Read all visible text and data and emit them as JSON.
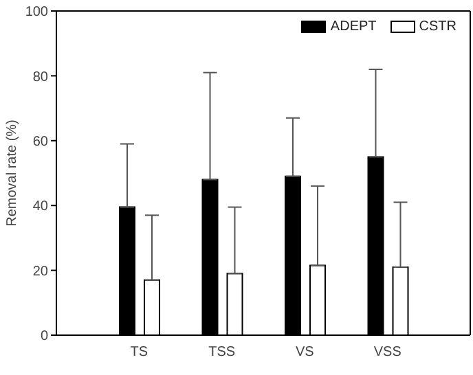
{
  "chart_data": {
    "type": "bar",
    "ylabel": "Removal rate (%)",
    "categories": [
      "TS",
      "TSS",
      "VS",
      "VSS"
    ],
    "series": [
      {
        "name": "ADEPT",
        "color": "#000000",
        "values": [
          39.5,
          48,
          49,
          55
        ],
        "errors": [
          [
            39.5,
            59
          ],
          [
            48,
            81
          ],
          [
            49,
            67
          ],
          [
            55,
            82
          ]
        ]
      },
      {
        "name": "CSTR",
        "color": "#ffffff",
        "values": [
          17,
          19,
          21.5,
          21
        ],
        "errors": [
          [
            17,
            37
          ],
          [
            19,
            39.5
          ],
          [
            21.5,
            46
          ],
          [
            21,
            41
          ]
        ]
      }
    ],
    "ylim": [
      0,
      100
    ],
    "yticks": [
      0,
      20,
      40,
      60,
      80,
      100
    ],
    "grid": false,
    "legend": "top right"
  }
}
